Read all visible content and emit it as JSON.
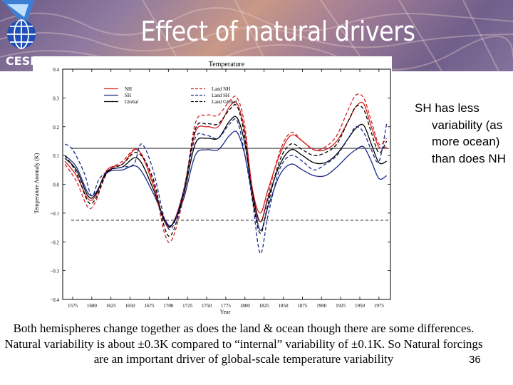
{
  "slide": {
    "title": "Effect of natural drivers",
    "org_label": "CESI",
    "side_note": "SH has less variability (as more ocean) than does NH",
    "caption": "Both hemispheres change together as does the land & ocean though there are some differences. Natural variability is about ±0.3K compared to “internal” variability of ±0.1K. So Natural forcings are an important driver of global-scale temperature variability",
    "page_number": "36"
  },
  "colors": {
    "nh": "#d42020",
    "sh": "#1a2a8a",
    "global": "#000000",
    "banner_text": "#ffffff"
  },
  "chart_data": {
    "type": "line",
    "title": "Temperature",
    "xlabel": "Year",
    "ylabel": "Temperature Anomaly (K)",
    "xlim": [
      1562,
      1990
    ],
    "ylim": [
      -0.4,
      0.4
    ],
    "x_ticks": [
      1575,
      1600,
      1625,
      1650,
      1675,
      1700,
      1725,
      1750,
      1775,
      1800,
      1825,
      1850,
      1875,
      1900,
      1925,
      1950,
      1975
    ],
    "x_tick_labels": [
      "1575",
      "1600",
      "1625",
      "1650",
      "1675",
      "1700",
      "1725",
      "1750",
      "1775",
      "1800",
      "1825",
      "1850",
      "1875",
      "1900",
      "1925",
      "1950",
      "1975"
    ],
    "y_ticks": [
      -0.4,
      -0.3,
      -0.2,
      -0.1,
      0.0,
      0.1,
      0.2,
      0.3,
      0.4
    ],
    "y_tick_labels": [
      "−0.4",
      "−0.3",
      "−0.2",
      "−0.1",
      "0.0",
      "0.1",
      "0.2",
      "0.3",
      "0.4"
    ],
    "reference_lines": [
      {
        "y": 0.125,
        "style": "solid"
      },
      {
        "y": -0.125,
        "style": "dashed"
      }
    ],
    "legend": [
      {
        "label": "NH",
        "style": "solid",
        "color": "#d42020"
      },
      {
        "label": "SH",
        "style": "solid",
        "color": "#1a2a8a"
      },
      {
        "label": "Global",
        "style": "solid",
        "color": "#000000"
      },
      {
        "label": "Land NH",
        "style": "dashed",
        "color": "#d42020"
      },
      {
        "label": "Land SH",
        "style": "dashed",
        "color": "#1a2a8a"
      },
      {
        "label": "Land Global",
        "style": "dashed",
        "color": "#000000"
      }
    ],
    "series": [
      {
        "name": "NH",
        "style": "solid",
        "color": "#d42020",
        "x": [
          1565,
          1580,
          1595,
          1605,
          1620,
          1640,
          1660,
          1680,
          1695,
          1705,
          1720,
          1735,
          1750,
          1765,
          1780,
          1790,
          1800,
          1810,
          1820,
          1830,
          1845,
          1860,
          1875,
          1890,
          1905,
          1920,
          1935,
          1945,
          1955,
          1965,
          1975,
          1985
        ],
        "y": [
          0.08,
          0.03,
          -0.05,
          -0.04,
          0.05,
          0.07,
          0.12,
          0.0,
          -0.13,
          -0.14,
          -0.02,
          0.18,
          0.2,
          0.2,
          0.27,
          0.28,
          0.18,
          -0.02,
          -0.1,
          -0.02,
          0.1,
          0.17,
          0.15,
          0.12,
          0.12,
          0.15,
          0.22,
          0.27,
          0.28,
          0.2,
          0.13,
          0.13
        ]
      },
      {
        "name": "SH",
        "style": "solid",
        "color": "#1a2a8a",
        "x": [
          1565,
          1580,
          1595,
          1605,
          1620,
          1640,
          1660,
          1680,
          1695,
          1705,
          1720,
          1735,
          1750,
          1765,
          1780,
          1790,
          1800,
          1810,
          1820,
          1830,
          1845,
          1860,
          1875,
          1890,
          1905,
          1920,
          1935,
          1945,
          1955,
          1965,
          1975,
          1985
        ],
        "y": [
          0.1,
          0.06,
          -0.03,
          -0.03,
          0.04,
          0.05,
          0.06,
          -0.03,
          -0.12,
          -0.14,
          -0.05,
          0.1,
          0.12,
          0.12,
          0.17,
          0.18,
          0.1,
          -0.04,
          -0.16,
          -0.08,
          0.03,
          0.07,
          0.05,
          0.03,
          0.03,
          0.06,
          0.1,
          0.12,
          0.13,
          0.08,
          0.02,
          0.03
        ]
      },
      {
        "name": "Global",
        "style": "solid",
        "color": "#000000",
        "x": [
          1565,
          1580,
          1595,
          1605,
          1620,
          1640,
          1660,
          1680,
          1695,
          1705,
          1720,
          1735,
          1750,
          1765,
          1780,
          1790,
          1800,
          1810,
          1820,
          1830,
          1845,
          1860,
          1875,
          1890,
          1905,
          1920,
          1935,
          1945,
          1955,
          1965,
          1975,
          1985
        ],
        "y": [
          0.09,
          0.05,
          -0.04,
          -0.035,
          0.045,
          0.06,
          0.09,
          -0.015,
          -0.125,
          -0.14,
          -0.035,
          0.14,
          0.16,
          0.16,
          0.22,
          0.23,
          0.14,
          -0.03,
          -0.13,
          -0.05,
          0.065,
          0.12,
          0.1,
          0.075,
          0.075,
          0.105,
          0.16,
          0.195,
          0.205,
          0.14,
          0.075,
          0.08
        ]
      },
      {
        "name": "Land NH",
        "style": "dashed",
        "color": "#d42020",
        "x": [
          1565,
          1580,
          1595,
          1605,
          1620,
          1640,
          1660,
          1680,
          1695,
          1705,
          1720,
          1735,
          1750,
          1765,
          1780,
          1790,
          1800,
          1810,
          1820,
          1830,
          1845,
          1860,
          1875,
          1890,
          1905,
          1920,
          1935,
          1945,
          1955,
          1965,
          1975,
          1985
        ],
        "y": [
          0.07,
          0.01,
          -0.08,
          -0.06,
          0.04,
          0.08,
          0.12,
          0.01,
          -0.17,
          -0.19,
          -0.04,
          0.21,
          0.24,
          0.24,
          0.29,
          0.3,
          0.2,
          -0.04,
          -0.13,
          -0.04,
          0.11,
          0.18,
          0.15,
          0.12,
          0.13,
          0.17,
          0.26,
          0.31,
          0.3,
          0.22,
          0.14,
          0.16
        ]
      },
      {
        "name": "Land SH",
        "style": "dashed",
        "color": "#1a2a8a",
        "x": [
          1565,
          1575,
          1590,
          1600,
          1610,
          1625,
          1640,
          1655,
          1665,
          1680,
          1695,
          1705,
          1720,
          1735,
          1750,
          1765,
          1780,
          1790,
          1800,
          1810,
          1820,
          1830,
          1845,
          1860,
          1875,
          1890,
          1905,
          1920,
          1935,
          1945,
          1955,
          1965,
          1975,
          1985
        ],
        "y": [
          0.14,
          0.12,
          0.04,
          -0.04,
          0.02,
          0.05,
          0.06,
          0.07,
          0.14,
          0.05,
          -0.12,
          -0.15,
          -0.02,
          0.16,
          0.17,
          0.16,
          0.21,
          0.22,
          0.1,
          -0.06,
          -0.24,
          -0.11,
          0.05,
          0.1,
          0.08,
          0.05,
          0.07,
          0.1,
          0.16,
          0.2,
          0.18,
          0.12,
          0.08,
          0.21
        ]
      },
      {
        "name": "Land Global",
        "style": "dashed",
        "color": "#000000",
        "x": [
          1565,
          1580,
          1595,
          1605,
          1620,
          1640,
          1660,
          1680,
          1695,
          1705,
          1720,
          1735,
          1750,
          1765,
          1780,
          1790,
          1800,
          1810,
          1820,
          1830,
          1845,
          1860,
          1875,
          1890,
          1905,
          1920,
          1935,
          1945,
          1955,
          1965,
          1975,
          1985
        ],
        "y": [
          0.1,
          0.04,
          -0.06,
          -0.05,
          0.04,
          0.07,
          0.11,
          0.02,
          -0.15,
          -0.17,
          -0.03,
          0.19,
          0.21,
          0.21,
          0.26,
          0.27,
          0.16,
          -0.05,
          -0.17,
          -0.07,
          0.08,
          0.14,
          0.12,
          0.1,
          0.11,
          0.14,
          0.22,
          0.27,
          0.26,
          0.18,
          0.11,
          0.15
        ]
      }
    ]
  }
}
